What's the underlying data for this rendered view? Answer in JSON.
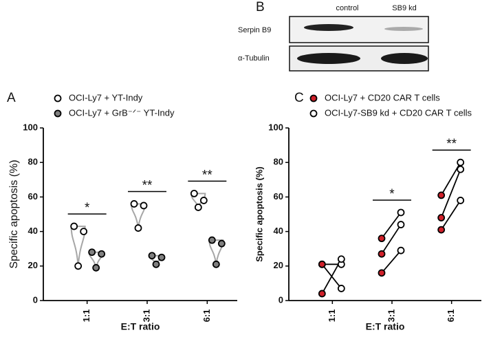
{
  "panel_b": {
    "label": "B",
    "columns": [
      "control",
      "SB9 kd"
    ],
    "rows": [
      "Serpin B9",
      "α-Tubulin"
    ]
  },
  "chart_data": [
    {
      "type": "violin",
      "panel_label": "A",
      "ylabel": "Specific apoptosis (%)",
      "xlabel": "E:T ratio",
      "categories": [
        "1:1",
        "3:1",
        "6:1"
      ],
      "series": [
        {
          "name": "OCI-Ly7 + YT-Indy",
          "color": "#ffffff",
          "values": [
            [
              43,
              40,
              20
            ],
            [
              56,
              55,
              42
            ],
            [
              62,
              58,
              54
            ]
          ]
        },
        {
          "name": "OCI-Ly7 + GrB⁻ᐟ⁻ YT-Indy",
          "color": "#808080",
          "values": [
            [
              28,
              27,
              19
            ],
            [
              26,
              25,
              21
            ],
            [
              35,
              33,
              21
            ]
          ]
        }
      ],
      "ylim": [
        0,
        100
      ],
      "yticks": [
        0,
        20,
        40,
        60,
        80,
        100
      ],
      "significance": [
        "*",
        "**",
        "**"
      ]
    },
    {
      "type": "paired",
      "panel_label": "C",
      "ylabel": "Specific apoptosis (%)",
      "xlabel": "E:T ratio",
      "categories": [
        "1:1",
        "3:1",
        "6:1"
      ],
      "series": [
        {
          "name": "OCI-Ly7 + CD20 CAR T cells",
          "color": "#d0202a",
          "values": [
            [
              21,
              21,
              4
            ],
            [
              36,
              27,
              16
            ],
            [
              61,
              48,
              41
            ]
          ]
        },
        {
          "name": "OCI-Ly7-SB9 kd + CD20 CAR T cells",
          "color": "#ffffff",
          "values": [
            [
              21,
              7,
              24
            ],
            [
              51,
              44,
              29
            ],
            [
              80,
              76,
              58
            ]
          ]
        }
      ],
      "ylim": [
        0,
        100
      ],
      "yticks": [
        0,
        20,
        40,
        60,
        80,
        100
      ],
      "significance": [
        null,
        "*",
        "**"
      ]
    }
  ]
}
